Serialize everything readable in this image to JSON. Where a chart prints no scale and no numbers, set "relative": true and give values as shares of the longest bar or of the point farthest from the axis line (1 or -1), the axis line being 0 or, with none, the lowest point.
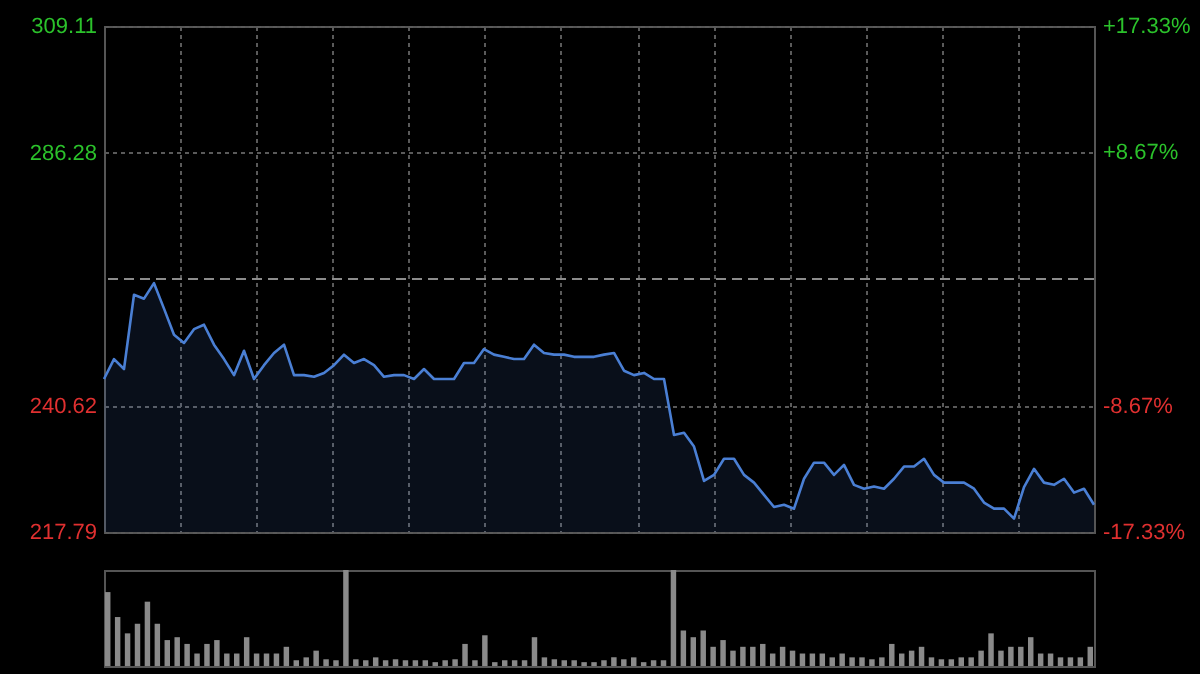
{
  "chart_data": [
    {
      "type": "area",
      "tick_labels": "y",
      "grid": true,
      "categories": [
        null,
        null,
        null,
        null,
        null,
        null,
        null,
        null,
        null,
        null,
        null,
        null,
        null,
        null,
        null,
        null,
        null,
        null,
        null,
        null,
        null,
        null,
        null,
        null,
        null,
        null,
        null,
        null,
        null,
        null,
        null,
        null,
        null,
        null,
        null,
        null,
        null,
        null,
        null,
        null,
        null,
        null,
        null,
        null,
        null,
        null,
        null,
        null,
        null,
        null,
        null,
        null,
        null,
        null,
        null,
        null,
        null,
        null,
        null,
        null,
        null,
        null,
        null,
        null,
        null,
        null,
        null,
        null,
        null,
        null,
        null,
        null,
        null,
        null,
        null,
        null,
        null,
        null,
        null,
        null,
        null,
        null,
        null,
        null,
        null,
        null,
        null,
        null,
        null,
        null,
        null,
        null,
        null,
        null,
        null,
        null,
        null,
        null,
        null,
        null
      ],
      "series": [
        {
          "color": "#4a7fd4",
          "values": [
            245.4,
            249.0,
            247.2,
            260.6,
            259.9,
            262.7,
            258.1,
            253.4,
            251.9,
            254.4,
            255.2,
            251.6,
            249.0,
            246.1,
            250.5,
            245.4,
            247.9,
            250.1,
            251.6,
            246.1,
            246.1,
            245.8,
            246.5,
            247.9,
            249.8,
            248.3,
            249.0,
            247.9,
            245.8,
            246.1,
            246.1,
            245.4,
            247.2,
            245.4,
            245.4,
            245.4,
            248.3,
            248.3,
            250.8,
            249.8,
            249.4,
            249.0,
            249.0,
            251.6,
            250.1,
            249.8,
            249.8,
            249.4,
            249.4,
            249.4,
            249.8,
            250.1,
            246.9,
            246.1,
            246.5,
            245.4,
            245.4,
            235.3,
            235.7,
            233.2,
            227.0,
            228.1,
            231.0,
            231.0,
            228.1,
            226.7,
            224.5,
            222.3,
            222.7,
            222.0,
            227.4,
            230.3,
            230.3,
            228.1,
            229.9,
            226.3,
            225.6,
            226.0,
            225.6,
            227.4,
            229.6,
            229.6,
            231.0,
            228.1,
            226.7,
            226.7,
            226.7,
            225.6,
            223.1,
            222.0,
            222.0,
            220.2,
            225.9,
            229.2,
            226.7,
            226.3,
            227.4,
            224.9,
            225.6,
            222.7
          ]
        }
      ],
      "ylim": [
        217.79,
        309.11
      ],
      "yticks": [
        217.79,
        240.62,
        286.28,
        309.11
      ],
      "y2lim": [
        -17.33,
        17.33
      ],
      "y2ticks": [
        {
          "value": -17.33,
          "label": "-17.33%"
        },
        {
          "value": -8.67,
          "label": "-8.67%"
        },
        {
          "value": 8.67,
          "label": "+8.67%"
        },
        {
          "value": 17.33,
          "label": "+17.33%"
        }
      ],
      "ref_lines": [
        {
          "axis": "y",
          "value": 263.45,
          "line_style": "dashed",
          "color": "#8c8c8c"
        }
      ]
    },
    {
      "type": "bar",
      "relative": true,
      "tick_labels": false,
      "categories": [
        null,
        null,
        null,
        null,
        null,
        null,
        null,
        null,
        null,
        null,
        null,
        null,
        null,
        null,
        null,
        null,
        null,
        null,
        null,
        null,
        null,
        null,
        null,
        null,
        null,
        null,
        null,
        null,
        null,
        null,
        null,
        null,
        null,
        null,
        null,
        null,
        null,
        null,
        null,
        null,
        null,
        null,
        null,
        null,
        null,
        null,
        null,
        null,
        null,
        null,
        null,
        null,
        null,
        null,
        null,
        null,
        null,
        null,
        null,
        null,
        null,
        null,
        null,
        null,
        null,
        null,
        null,
        null,
        null,
        null,
        null,
        null,
        null,
        null,
        null,
        null,
        null,
        null,
        null,
        null,
        null,
        null,
        null,
        null,
        null,
        null,
        null,
        null,
        null,
        null,
        null,
        null,
        null,
        null,
        null,
        null,
        null,
        null,
        null,
        null
      ],
      "series": [
        {
          "color": "#8a8a8a",
          "values": [
            0.77,
            0.51,
            0.34,
            0.44,
            0.67,
            0.44,
            0.27,
            0.3,
            0.23,
            0.13,
            0.23,
            0.27,
            0.13,
            0.13,
            0.3,
            0.13,
            0.13,
            0.13,
            0.2,
            0.06,
            0.09,
            0.16,
            0.07,
            0.06,
            1.0,
            0.07,
            0.06,
            0.09,
            0.06,
            0.07,
            0.06,
            0.06,
            0.06,
            0.04,
            0.06,
            0.07,
            0.23,
            0.06,
            0.32,
            0.04,
            0.06,
            0.06,
            0.06,
            0.3,
            0.09,
            0.07,
            0.06,
            0.06,
            0.04,
            0.04,
            0.06,
            0.09,
            0.07,
            0.09,
            0.04,
            0.06,
            0.06,
            1.0,
            0.37,
            0.3,
            0.37,
            0.2,
            0.27,
            0.16,
            0.2,
            0.2,
            0.23,
            0.13,
            0.2,
            0.16,
            0.13,
            0.13,
            0.13,
            0.09,
            0.13,
            0.09,
            0.09,
            0.07,
            0.09,
            0.23,
            0.13,
            0.16,
            0.2,
            0.09,
            0.07,
            0.07,
            0.09,
            0.09,
            0.16,
            0.34,
            0.16,
            0.2,
            0.2,
            0.3,
            0.13,
            0.13,
            0.09,
            0.09,
            0.09,
            0.2
          ]
        }
      ]
    }
  ]
}
